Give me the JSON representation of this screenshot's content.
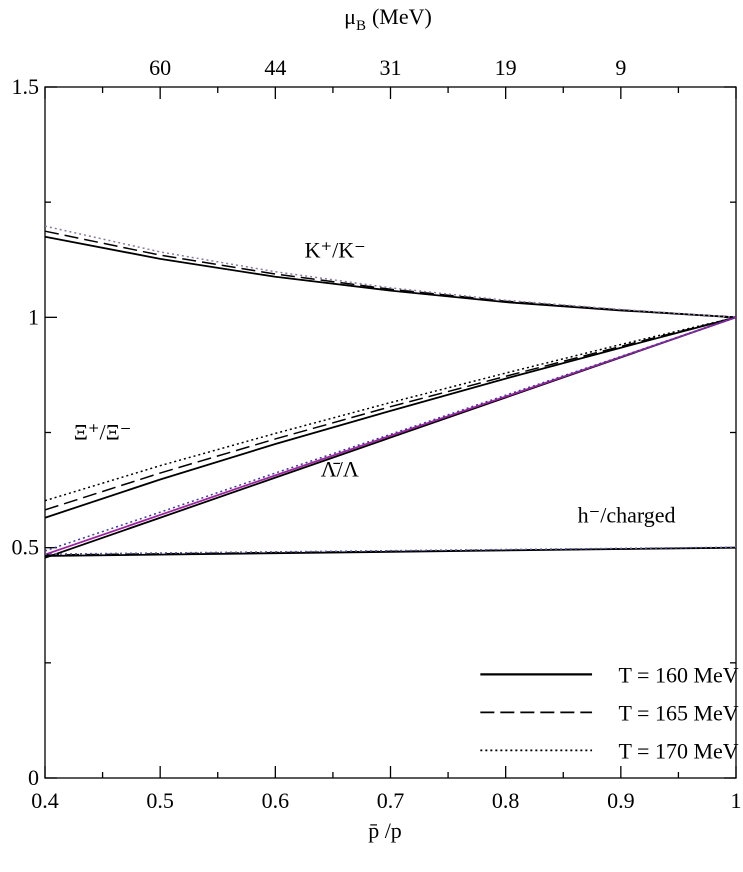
{
  "chart_data": {
    "type": "line",
    "title": "",
    "xlabel": "p̄ /p",
    "ylabel": "",
    "xlim": [
      0.4,
      1.0
    ],
    "ylim": [
      0,
      1.5
    ],
    "x_ticks": [
      0.4,
      0.5,
      0.6,
      0.7,
      0.8,
      0.9,
      1.0
    ],
    "x_tick_labels": [
      "0.4",
      "0.5",
      "0.6",
      "0.7",
      "0.8",
      "0.9",
      "1"
    ],
    "y_ticks": [
      0,
      0.5,
      1.0,
      1.5
    ],
    "y_tick_labels": [
      "0",
      "0.5",
      "1",
      "1.5"
    ],
    "top_axis": {
      "label_main": "μ",
      "label_sub": "B",
      "label_unit": "(MeV)",
      "ticks": [
        {
          "x": 0.5,
          "label": "60"
        },
        {
          "x": 0.6,
          "label": "44"
        },
        {
          "x": 0.7,
          "label": "31"
        },
        {
          "x": 0.8,
          "label": "19"
        },
        {
          "x": 0.9,
          "label": "9"
        }
      ]
    },
    "annotations": [
      {
        "id": "kaon",
        "text": "K⁺/K⁻",
        "x": 0.652,
        "y": 1.13
      },
      {
        "id": "xi",
        "text": "Ξ⁺/Ξ⁻",
        "x": 0.45,
        "y": 0.735
      },
      {
        "id": "lambda",
        "text": "Λ̄/Λ",
        "x": 0.656,
        "y": 0.655
      },
      {
        "id": "hminus",
        "text": "h⁻/charged",
        "x": 0.905,
        "y": 0.555
      }
    ],
    "series": [
      {
        "group": "K+/K-",
        "name": "T = 160 MeV",
        "style": "solid",
        "color": "#000000",
        "x": [
          0.4,
          0.5,
          0.6,
          0.7,
          0.8,
          0.9,
          1.0
        ],
        "y": [
          1.175,
          1.127,
          1.088,
          1.058,
          1.033,
          1.015,
          1.0
        ]
      },
      {
        "group": "K+/K-",
        "name": "T = 165 MeV",
        "style": "dashed",
        "color": "#000000",
        "x": [
          0.4,
          0.5,
          0.6,
          0.7,
          0.8,
          0.9,
          1.0
        ],
        "y": [
          1.187,
          1.135,
          1.094,
          1.061,
          1.035,
          1.016,
          1.0
        ]
      },
      {
        "group": "K+/K-",
        "name": "T = 170 MeV",
        "style": "dotted",
        "color": "#8a7aa0",
        "x": [
          0.4,
          0.5,
          0.6,
          0.7,
          0.8,
          0.9,
          1.0
        ],
        "y": [
          1.198,
          1.142,
          1.099,
          1.064,
          1.037,
          1.017,
          1.0
        ]
      },
      {
        "group": "Xi+/Xi-",
        "name": "T = 160 MeV",
        "style": "solid",
        "color": "#000000",
        "x": [
          0.4,
          0.5,
          0.6,
          0.7,
          0.8,
          0.9,
          1.0
        ],
        "y": [
          0.565,
          0.648,
          0.725,
          0.797,
          0.867,
          0.934,
          1.0
        ]
      },
      {
        "group": "Xi+/Xi-",
        "name": "T = 165 MeV",
        "style": "dashed",
        "color": "#000000",
        "x": [
          0.4,
          0.5,
          0.6,
          0.7,
          0.8,
          0.9,
          1.0
        ],
        "y": [
          0.582,
          0.662,
          0.736,
          0.806,
          0.872,
          0.937,
          1.0
        ]
      },
      {
        "group": "Xi+/Xi-",
        "name": "T = 170 MeV",
        "style": "dotted",
        "color": "#000000",
        "x": [
          0.4,
          0.5,
          0.6,
          0.7,
          0.8,
          0.9,
          1.0
        ],
        "y": [
          0.602,
          0.678,
          0.748,
          0.815,
          0.879,
          0.941,
          1.0
        ]
      },
      {
        "group": "Lambda-bar/Lambda",
        "name": "T = 160 MeV",
        "style": "solid",
        "color": "#000000",
        "x": [
          0.4,
          0.5,
          0.6,
          0.7,
          0.8,
          0.9,
          1.0
        ],
        "y": [
          0.478,
          0.565,
          0.652,
          0.739,
          0.826,
          0.913,
          1.0
        ]
      },
      {
        "group": "Lambda-bar/Lambda",
        "name": "T = 165 MeV",
        "style": "solid",
        "color": "#a020a0",
        "x": [
          0.4,
          0.5,
          0.6,
          0.7,
          0.8,
          0.9,
          1.0
        ],
        "y": [
          0.485,
          0.571,
          0.657,
          0.743,
          0.828,
          0.914,
          1.0
        ]
      },
      {
        "group": "Lambda-bar/Lambda",
        "name": "T = 170 MeV",
        "style": "dotted",
        "color": "#3a3aa0",
        "x": [
          0.4,
          0.5,
          0.6,
          0.7,
          0.8,
          0.9,
          1.0
        ],
        "y": [
          0.493,
          0.577,
          0.662,
          0.746,
          0.831,
          0.915,
          1.0
        ]
      },
      {
        "group": "h-/charged",
        "name": "T = 160 MeV",
        "style": "solid",
        "color": "#000000",
        "x": [
          0.4,
          1.0
        ],
        "y": [
          0.482,
          0.5
        ]
      },
      {
        "group": "h-/charged",
        "name": "T = 165 MeV",
        "style": "dashed",
        "color": "#000000",
        "x": [
          0.4,
          1.0
        ],
        "y": [
          0.484,
          0.5
        ]
      },
      {
        "group": "h-/charged",
        "name": "T = 170 MeV",
        "style": "dotted",
        "color": "#5a5aa0",
        "x": [
          0.4,
          1.0
        ],
        "y": [
          0.486,
          0.501
        ]
      }
    ],
    "legend": {
      "placement": "lower-right",
      "entries": [
        {
          "label": "T = 160 MeV",
          "style": "solid"
        },
        {
          "label": "T = 165 MeV",
          "style": "dashed"
        },
        {
          "label": "T = 170 MeV",
          "style": "dotted"
        }
      ]
    },
    "grid": false
  }
}
